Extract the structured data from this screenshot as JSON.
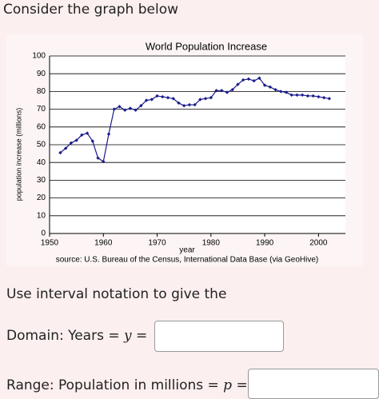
{
  "prompt": "Consider the graph below",
  "chart_data": {
    "type": "line",
    "title": "World Population Increase",
    "x_label": "year",
    "y_label": "population increase (millions)",
    "source": "source: U.S. Bureau of the Census, International Data Base (via GeoHive)",
    "x": [
      1952,
      1953,
      1954,
      1955,
      1956,
      1957,
      1958,
      1959,
      1960,
      1961,
      1962,
      1963,
      1964,
      1965,
      1966,
      1967,
      1968,
      1969,
      1970,
      1971,
      1972,
      1973,
      1974,
      1975,
      1976,
      1977,
      1978,
      1979,
      1980,
      1981,
      1982,
      1983,
      1984,
      1985,
      1986,
      1987,
      1988,
      1989,
      1990,
      1991,
      1992,
      1993,
      1994,
      1995,
      1996,
      1997,
      1998,
      1999,
      2000,
      2001,
      2002
    ],
    "series": [
      {
        "color": "#1a1a8c",
        "values": [
          45.5,
          48,
          51,
          52.5,
          55.5,
          56.5,
          52,
          42.5,
          40.5,
          56,
          70,
          71.5,
          69.5,
          70.5,
          69.5,
          72,
          75,
          75.5,
          77.5,
          77,
          76.5,
          76,
          73.5,
          72,
          72.5,
          72.5,
          75.5,
          76,
          76.5,
          80.5,
          80.5,
          79.5,
          81,
          84,
          86.5,
          87,
          86,
          87.5,
          83.5,
          82.5,
          81,
          80,
          79.5,
          78,
          78,
          78,
          77.5,
          77.5,
          77,
          76.5,
          76
        ]
      }
    ],
    "xlim": [
      1950,
      2005
    ],
    "xticks": [
      1950,
      1960,
      1970,
      1980,
      1990,
      2000
    ],
    "ylim": [
      0,
      100
    ],
    "yticks": [
      0,
      10,
      20,
      30,
      40,
      50,
      60,
      70,
      80,
      90,
      100
    ],
    "grid": true
  },
  "instruction": "Use interval notation to give the",
  "domain": {
    "label": "Domain: Years",
    "math": "= y ="
  },
  "range": {
    "label": "Range: Population in millions",
    "math": "= p ="
  }
}
